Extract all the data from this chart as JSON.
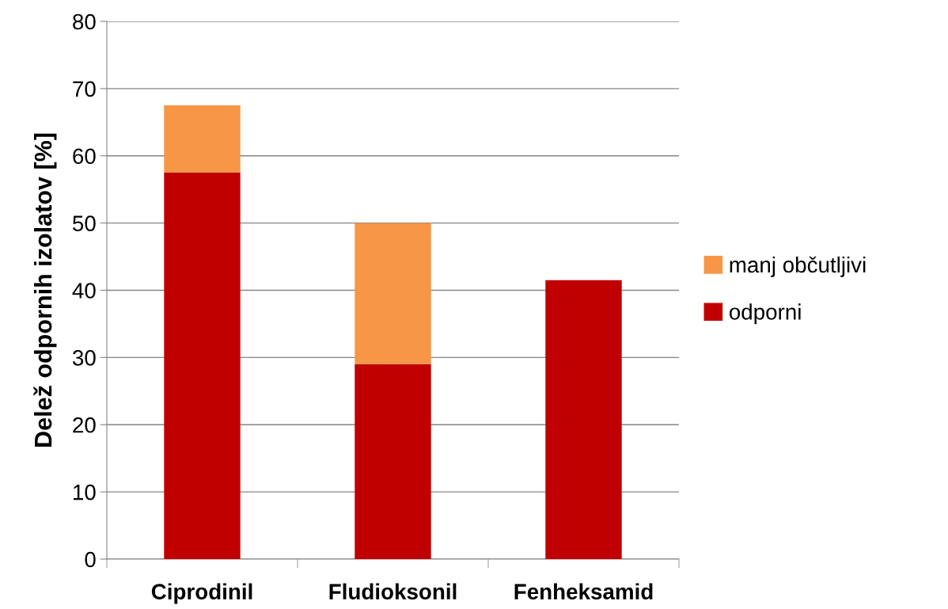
{
  "chart_data": {
    "type": "bar",
    "stacked": true,
    "ylabel": "Delež odpornih izolatov [%]",
    "categories": [
      "Ciprodinil",
      "Fludioksonil",
      "Fenheksamid"
    ],
    "series": [
      {
        "name": "odporni",
        "color": "#c00000",
        "values": [
          57.5,
          29,
          41.5
        ]
      },
      {
        "name": "manj občutljivi",
        "color": "#f79646",
        "values": [
          10,
          21,
          0
        ]
      }
    ],
    "ylim": [
      0,
      80
    ],
    "yticks": [
      0,
      10,
      20,
      30,
      40,
      50,
      60,
      70,
      80
    ],
    "grid": "y",
    "legend": "right"
  }
}
